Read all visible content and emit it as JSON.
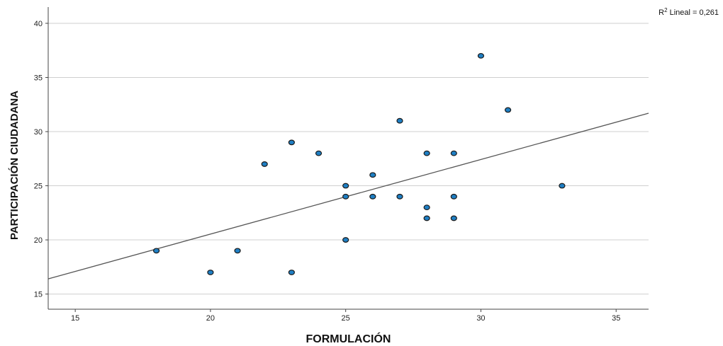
{
  "chart_data": {
    "type": "scatter",
    "xlabel": "FORMULACIÓN",
    "ylabel": "PARTICIPACIÓN CIUDADANA",
    "xlim": [
      14,
      36.2
    ],
    "ylim": [
      13.6,
      41.5
    ],
    "xticks": [
      15,
      20,
      25,
      30,
      35
    ],
    "yticks": [
      15,
      20,
      25,
      30,
      35,
      40
    ],
    "grid": "horizontal",
    "points": [
      {
        "x": 18,
        "y": 19
      },
      {
        "x": 20,
        "y": 17
      },
      {
        "x": 21,
        "y": 19
      },
      {
        "x": 22,
        "y": 27
      },
      {
        "x": 23,
        "y": 29
      },
      {
        "x": 23,
        "y": 17
      },
      {
        "x": 24,
        "y": 28
      },
      {
        "x": 25,
        "y": 25
      },
      {
        "x": 25,
        "y": 24
      },
      {
        "x": 25,
        "y": 20
      },
      {
        "x": 26,
        "y": 26
      },
      {
        "x": 26,
        "y": 24
      },
      {
        "x": 27,
        "y": 31
      },
      {
        "x": 27,
        "y": 24
      },
      {
        "x": 28,
        "y": 28
      },
      {
        "x": 28,
        "y": 23
      },
      {
        "x": 28,
        "y": 22
      },
      {
        "x": 29,
        "y": 28
      },
      {
        "x": 29,
        "y": 24
      },
      {
        "x": 29,
        "y": 22
      },
      {
        "x": 30,
        "y": 37
      },
      {
        "x": 31,
        "y": 32
      },
      {
        "x": 33,
        "y": 25
      }
    ],
    "fit_line": {
      "label_base": "R",
      "label_sup": "2",
      "label_text": " Lineal = 0,261",
      "x": [
        14,
        36.2
      ],
      "y": [
        16.4,
        31.7
      ]
    },
    "colors": {
      "point_fill": "#1f7fc4",
      "point_stroke": "#1a1a1a",
      "fit_line": "#555555",
      "grid": "#cfcfcf",
      "axis": "#444444"
    }
  }
}
